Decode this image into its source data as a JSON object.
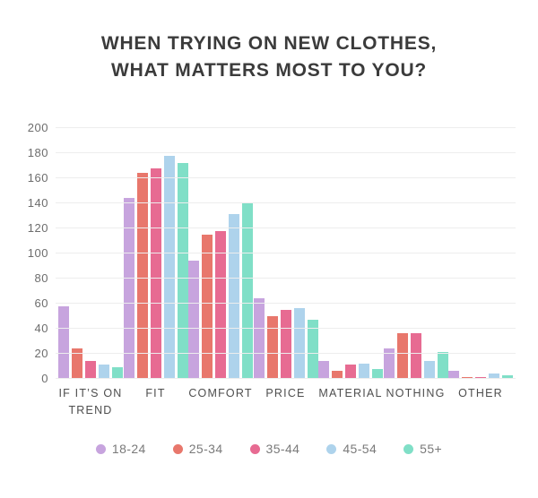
{
  "chart_data": {
    "type": "bar",
    "title_lines": [
      "WHEN TRYING ON NEW CLOTHES,",
      "WHAT MATTERS MOST TO YOU?"
    ],
    "categories": [
      "IF IT’S ON TREND",
      "FIT",
      "COMFORT",
      "PRICE",
      "MATERIAL",
      "NOTHING",
      "OTHER"
    ],
    "series": [
      {
        "name": "18-24",
        "color": "#c7a4de",
        "values": [
          58,
          144,
          94,
          64,
          14,
          24,
          6
        ]
      },
      {
        "name": "25-34",
        "color": "#e8776c",
        "values": [
          24,
          164,
          115,
          50,
          6,
          36,
          1
        ]
      },
      {
        "name": "35-44",
        "color": "#e76b92",
        "values": [
          14,
          168,
          118,
          55,
          11,
          36,
          1
        ]
      },
      {
        "name": "45-54",
        "color": "#aed3ec",
        "values": [
          11,
          178,
          131,
          56,
          12,
          14,
          4
        ]
      },
      {
        "name": "55+",
        "color": "#80dfc7",
        "values": [
          9,
          172,
          140,
          47,
          8,
          21,
          3
        ]
      }
    ],
    "ylim": [
      0,
      200
    ],
    "ytick_step": 20,
    "grid": true,
    "legend_position": "bottom",
    "xlabel": "",
    "ylabel": ""
  },
  "colors": {
    "title_text": "#3b3b3b",
    "axis_text": "#6d6d6d",
    "gridline": "#ededed"
  }
}
